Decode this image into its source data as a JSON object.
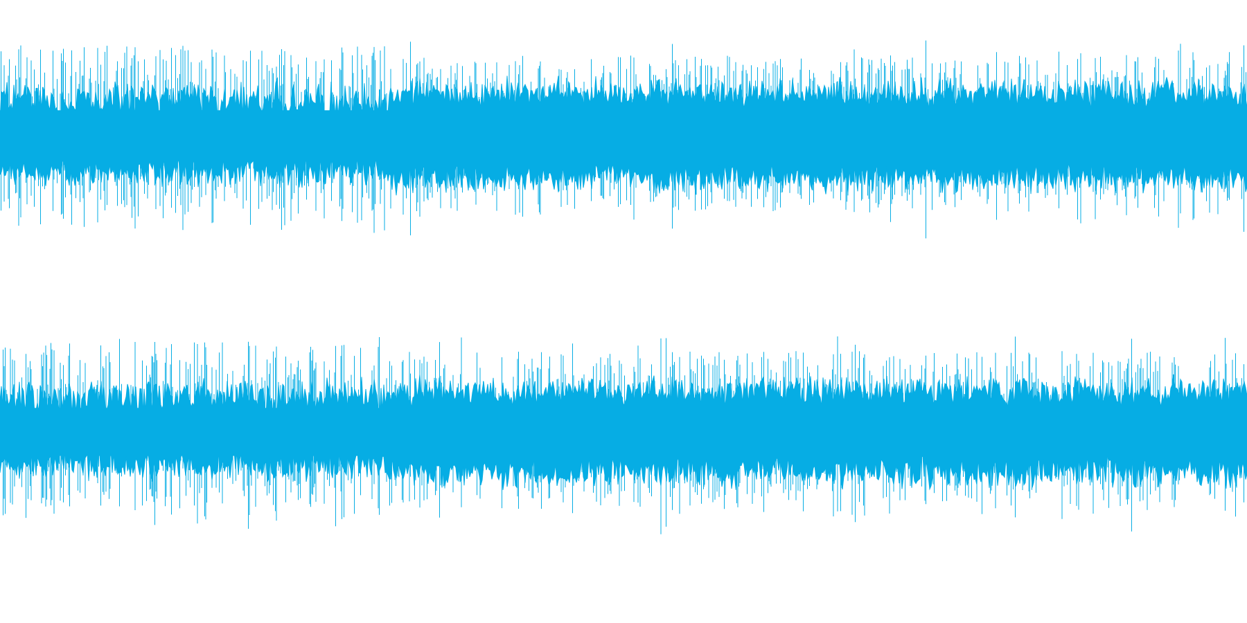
{
  "waveform": {
    "color": "#06ade4",
    "background": "#ffffff",
    "channels": [
      {
        "name": "",
        "peak_level": 0.92,
        "body_level": 0.35,
        "density_change_at": 0.35
      },
      {
        "name": "",
        "peak_level": 0.93,
        "body_level": 0.33,
        "density_change_at": 0.35
      }
    ]
  }
}
